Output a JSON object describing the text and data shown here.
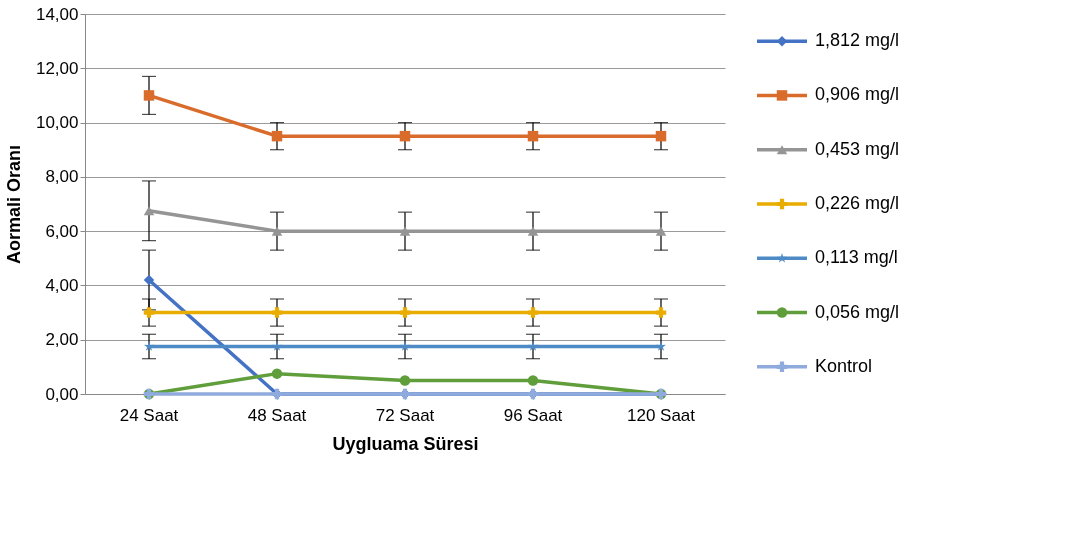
{
  "chart_data": {
    "type": "line",
    "xlabel": "Uygluama Süresi",
    "ylabel": "Aormali Oranı",
    "categories": [
      "24 Saat",
      "48 Saat",
      "72 Saat",
      "96 Saat",
      "120 Saat"
    ],
    "ylim": [
      0,
      14
    ],
    "yticks": [
      {
        "value": 0,
        "label": "0,00"
      },
      {
        "value": 2,
        "label": "2,00"
      },
      {
        "value": 4,
        "label": "4,00"
      },
      {
        "value": 6,
        "label": "6,00"
      },
      {
        "value": 8,
        "label": "8,00"
      },
      {
        "value": 10,
        "label": "10,00"
      },
      {
        "value": 12,
        "label": "12,00"
      },
      {
        "value": 14,
        "label": "14,00"
      }
    ],
    "grid": "y",
    "legend": "right",
    "line_style": "solid",
    "series": [
      {
        "name": "1,812 mg/l",
        "color": "#4472c4",
        "marker": "diamond",
        "values": [
          4.2,
          0,
          0,
          0,
          0
        ],
        "errors": [
          1.1,
          null,
          null,
          null,
          null
        ]
      },
      {
        "name": "0,906 mg/l",
        "color": "#d96b2b",
        "marker": "square",
        "values": [
          11.0,
          9.5,
          9.5,
          9.5,
          9.5
        ],
        "errors": [
          0.7,
          0.5,
          0.5,
          0.5,
          0.5
        ]
      },
      {
        "name": "0,453 mg/l",
        "color": "#959595",
        "marker": "triangle",
        "values": [
          6.75,
          6.0,
          6.0,
          6.0,
          6.0
        ],
        "errors": [
          1.1,
          0.7,
          0.7,
          0.7,
          0.7
        ]
      },
      {
        "name": "0,226 mg/l",
        "color": "#e8ad00",
        "marker": "cross",
        "values": [
          3.0,
          3.0,
          3.0,
          3.0,
          3.0
        ],
        "errors": [
          0.5,
          0.5,
          0.5,
          0.5,
          0.5
        ]
      },
      {
        "name": "0,113 mg/l",
        "color": "#4d8ac6",
        "marker": "star",
        "values": [
          1.75,
          1.75,
          1.75,
          1.75,
          1.75
        ],
        "errors": [
          0.45,
          0.45,
          0.45,
          0.45,
          0.45
        ]
      },
      {
        "name": "0,056 mg/l",
        "color": "#5f9e3b",
        "marker": "circle",
        "values": [
          0,
          0.75,
          0.5,
          0.5,
          0
        ]
      },
      {
        "name": "Kontrol",
        "color": "#8faadc",
        "marker": "cross",
        "values": [
          0,
          0,
          0,
          0,
          0
        ]
      }
    ]
  }
}
